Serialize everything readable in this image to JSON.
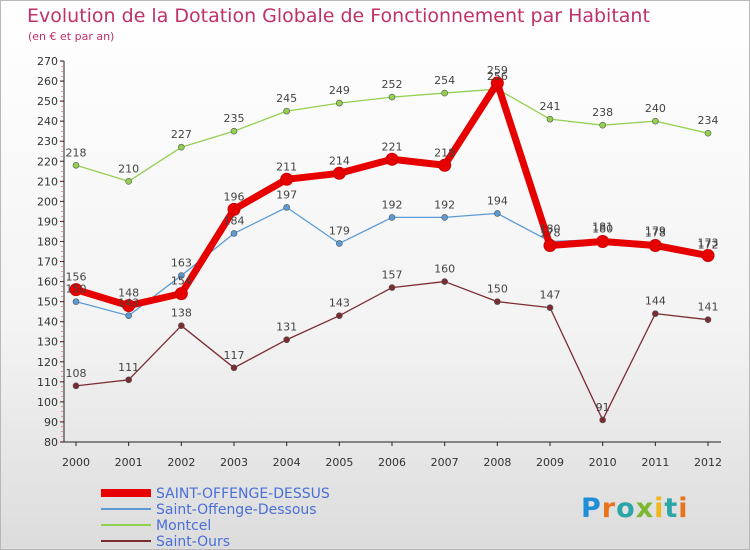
{
  "title": "Evolution de la Dotation Globale de Fonctionnement par Habitant",
  "subtitle": "(en € et par an)",
  "logo_text": "Proxiti",
  "chart_data": {
    "type": "line",
    "title": "Evolution de la Dotation Globale de Fonctionnement par Habitant",
    "subtitle": "(en € et par an)",
    "x": [
      "2000",
      "2001",
      "2002",
      "2003",
      "2004",
      "2005",
      "2006",
      "2007",
      "2008",
      "2009",
      "2010",
      "2011",
      "2012"
    ],
    "ylim": [
      80,
      270
    ],
    "ytick_step": 10,
    "grid": false,
    "legend_position": "bottom-left",
    "series": [
      {
        "name": "SAINT-OFFENGE-DESSUS",
        "color": "#e60000",
        "values": [
          156,
          148,
          154,
          196,
          211,
          214,
          221,
          218,
          259,
          178,
          180,
          178,
          173
        ]
      },
      {
        "name": "Saint-Offenge-Dessous",
        "color": "#5b9bd5",
        "values": [
          150,
          143,
          163,
          184,
          197,
          179,
          192,
          192,
          194,
          180,
          181,
          179,
          172
        ]
      },
      {
        "name": "Montcel",
        "color": "#92d050",
        "values": [
          218,
          210,
          227,
          235,
          245,
          249,
          252,
          254,
          256,
          241,
          238,
          240,
          234
        ]
      },
      {
        "name": "Saint-Ours",
        "color": "#7b2c33",
        "values": [
          108,
          111,
          138,
          117,
          131,
          143,
          157,
          160,
          150,
          147,
          91,
          144,
          141
        ]
      }
    ]
  }
}
